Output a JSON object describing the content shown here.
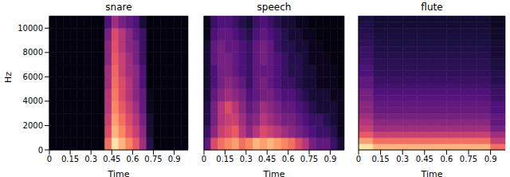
{
  "chart_data": [
    {
      "type": "heatmap",
      "title": "snare",
      "x_label": "Time",
      "y_label": "Hz",
      "xlim": [
        0,
        1
      ],
      "ylim": [
        0,
        11000
      ],
      "xticks": [
        0,
        0.15,
        0.3,
        0.45,
        0.6,
        0.75,
        0.9
      ],
      "yticks": [
        0,
        2000,
        4000,
        6000,
        8000,
        10000
      ],
      "tick_labels": true,
      "x_edges": [
        0,
        0.05,
        0.1,
        0.15,
        0.2,
        0.25,
        0.3,
        0.35,
        0.4,
        0.45,
        0.5,
        0.55,
        0.6,
        0.65,
        0.7,
        0.75,
        0.8,
        0.85,
        0.9,
        0.95,
        1
      ],
      "y_edges": [
        0,
        1000,
        2000,
        3000,
        4000,
        5000,
        6000,
        7000,
        8000,
        9000,
        10000,
        11000
      ],
      "cells": [
        [
          0.02,
          0.02,
          0.02,
          0.02,
          0.02,
          0.02,
          0.02,
          0.02,
          0.7,
          0.95,
          0.85,
          0.75,
          0.65,
          0.45,
          0.15,
          0.02,
          0.02,
          0.02,
          0.02,
          0.02
        ],
        [
          0.02,
          0.02,
          0.02,
          0.02,
          0.02,
          0.02,
          0.02,
          0.02,
          0.6,
          0.85,
          0.75,
          0.65,
          0.55,
          0.4,
          0.1,
          0.02,
          0.02,
          0.02,
          0.02,
          0.02
        ],
        [
          0.02,
          0.02,
          0.02,
          0.02,
          0.02,
          0.02,
          0.02,
          0.02,
          0.55,
          0.8,
          0.7,
          0.6,
          0.5,
          0.35,
          0.1,
          0.02,
          0.02,
          0.02,
          0.02,
          0.02
        ],
        [
          0.02,
          0.02,
          0.02,
          0.02,
          0.02,
          0.02,
          0.02,
          0.02,
          0.5,
          0.75,
          0.65,
          0.55,
          0.45,
          0.3,
          0.05,
          0.02,
          0.02,
          0.02,
          0.02,
          0.02
        ],
        [
          0.02,
          0.02,
          0.02,
          0.02,
          0.02,
          0.02,
          0.02,
          0.02,
          0.5,
          0.72,
          0.6,
          0.5,
          0.4,
          0.3,
          0.05,
          0.02,
          0.02,
          0.02,
          0.02,
          0.02
        ],
        [
          0.02,
          0.02,
          0.02,
          0.02,
          0.02,
          0.02,
          0.02,
          0.02,
          0.45,
          0.7,
          0.6,
          0.5,
          0.4,
          0.25,
          0.02,
          0.02,
          0.02,
          0.02,
          0.02,
          0.02
        ],
        [
          0.02,
          0.02,
          0.02,
          0.02,
          0.02,
          0.02,
          0.02,
          0.02,
          0.45,
          0.68,
          0.55,
          0.45,
          0.4,
          0.25,
          0.02,
          0.02,
          0.02,
          0.02,
          0.02,
          0.02
        ],
        [
          0.02,
          0.02,
          0.02,
          0.02,
          0.02,
          0.02,
          0.02,
          0.02,
          0.4,
          0.65,
          0.55,
          0.45,
          0.35,
          0.2,
          0.02,
          0.02,
          0.02,
          0.02,
          0.02,
          0.02
        ],
        [
          0.02,
          0.02,
          0.02,
          0.02,
          0.02,
          0.02,
          0.02,
          0.02,
          0.4,
          0.62,
          0.5,
          0.4,
          0.35,
          0.2,
          0.02,
          0.02,
          0.02,
          0.02,
          0.02,
          0.02
        ],
        [
          0.02,
          0.02,
          0.02,
          0.02,
          0.02,
          0.02,
          0.02,
          0.02,
          0.35,
          0.6,
          0.5,
          0.4,
          0.3,
          0.2,
          0.02,
          0.02,
          0.02,
          0.02,
          0.02,
          0.02
        ],
        [
          0.02,
          0.02,
          0.02,
          0.02,
          0.02,
          0.02,
          0.02,
          0.02,
          0.25,
          0.45,
          0.35,
          0.3,
          0.25,
          0.1,
          0.02,
          0.02,
          0.02,
          0.02,
          0.02,
          0.02
        ]
      ]
    },
    {
      "type": "heatmap",
      "title": "speech",
      "x_label": "Time",
      "xlim": [
        0,
        1
      ],
      "ylim": [
        0,
        11000
      ],
      "xticks": [
        0,
        0.15,
        0.3,
        0.45,
        0.6,
        0.75,
        0.9
      ],
      "yticks": [
        0,
        2000,
        4000,
        6000,
        8000,
        10000
      ],
      "tick_labels": "x",
      "x_edges": [
        0,
        0.05,
        0.1,
        0.15,
        0.2,
        0.25,
        0.3,
        0.35,
        0.4,
        0.45,
        0.5,
        0.55,
        0.6,
        0.65,
        0.7,
        0.75,
        0.8,
        0.85,
        0.9,
        0.95,
        1
      ],
      "y_edges": [
        0,
        1000,
        2000,
        3000,
        4000,
        5000,
        6000,
        7000,
        8000,
        9000,
        10000,
        11000
      ],
      "cells": [
        [
          0.3,
          0.6,
          0.7,
          0.75,
          0.8,
          0.7,
          0.75,
          0.85,
          0.8,
          0.85,
          0.8,
          0.75,
          0.7,
          0.6,
          0.5,
          0.35,
          0.3,
          0.3,
          0.2,
          0.1
        ],
        [
          0.2,
          0.4,
          0.55,
          0.6,
          0.65,
          0.5,
          0.4,
          0.5,
          0.6,
          0.55,
          0.5,
          0.45,
          0.4,
          0.35,
          0.3,
          0.25,
          0.2,
          0.2,
          0.15,
          0.05
        ],
        [
          0.15,
          0.35,
          0.5,
          0.55,
          0.55,
          0.45,
          0.35,
          0.4,
          0.5,
          0.45,
          0.4,
          0.35,
          0.35,
          0.3,
          0.25,
          0.2,
          0.2,
          0.15,
          0.1,
          0.05
        ],
        [
          0.15,
          0.35,
          0.5,
          0.6,
          0.5,
          0.4,
          0.3,
          0.35,
          0.45,
          0.4,
          0.35,
          0.3,
          0.3,
          0.25,
          0.2,
          0.15,
          0.1,
          0.1,
          0.1,
          0.05
        ],
        [
          0.1,
          0.3,
          0.4,
          0.45,
          0.4,
          0.35,
          0.25,
          0.3,
          0.35,
          0.35,
          0.3,
          0.25,
          0.25,
          0.2,
          0.15,
          0.1,
          0.1,
          0.1,
          0.05,
          0.05
        ],
        [
          0.1,
          0.25,
          0.35,
          0.4,
          0.35,
          0.3,
          0.2,
          0.3,
          0.35,
          0.3,
          0.25,
          0.2,
          0.2,
          0.15,
          0.1,
          0.1,
          0.05,
          0.05,
          0.05,
          0.02
        ],
        [
          0.1,
          0.25,
          0.35,
          0.35,
          0.3,
          0.25,
          0.2,
          0.3,
          0.3,
          0.3,
          0.25,
          0.2,
          0.15,
          0.15,
          0.1,
          0.1,
          0.05,
          0.05,
          0.05,
          0.02
        ],
        [
          0.1,
          0.3,
          0.35,
          0.35,
          0.3,
          0.25,
          0.2,
          0.3,
          0.35,
          0.3,
          0.25,
          0.2,
          0.15,
          0.15,
          0.1,
          0.05,
          0.05,
          0.05,
          0.02,
          0.02
        ],
        [
          0.1,
          0.3,
          0.35,
          0.3,
          0.3,
          0.25,
          0.2,
          0.3,
          0.35,
          0.3,
          0.2,
          0.15,
          0.15,
          0.1,
          0.1,
          0.05,
          0.05,
          0.02,
          0.02,
          0.02
        ],
        [
          0.05,
          0.25,
          0.3,
          0.3,
          0.25,
          0.2,
          0.15,
          0.25,
          0.3,
          0.25,
          0.2,
          0.15,
          0.1,
          0.1,
          0.05,
          0.05,
          0.02,
          0.02,
          0.02,
          0.02
        ],
        [
          0.05,
          0.2,
          0.25,
          0.25,
          0.2,
          0.15,
          0.1,
          0.2,
          0.25,
          0.2,
          0.15,
          0.1,
          0.1,
          0.05,
          0.05,
          0.02,
          0.02,
          0.02,
          0.02,
          0.02
        ]
      ]
    },
    {
      "type": "heatmap",
      "title": "flute",
      "x_label": "Time",
      "xlim": [
        0,
        1
      ],
      "ylim": [
        0,
        11000
      ],
      "xticks": [
        0,
        0.15,
        0.3,
        0.45,
        0.6,
        0.75,
        0.9
      ],
      "yticks": [
        0,
        2000,
        4000,
        6000,
        8000,
        10000
      ],
      "tick_labels": "x",
      "x_edges": [
        0,
        0.1,
        0.2,
        0.3,
        0.4,
        0.5,
        0.6,
        0.7,
        0.8,
        0.9,
        1
      ],
      "y_edges": [
        0,
        500,
        1000,
        1500,
        2000,
        2500,
        3000,
        3500,
        4000,
        4500,
        5000,
        5500,
        6000,
        6500,
        7000,
        7500,
        8000,
        8500,
        9000,
        9500,
        10000,
        10500,
        11000
      ],
      "cells": [
        [
          0.95,
          0.85,
          0.85,
          0.85,
          0.85,
          0.85,
          0.85,
          0.85,
          0.85,
          0.7
        ],
        [
          0.8,
          0.7,
          0.7,
          0.7,
          0.7,
          0.7,
          0.7,
          0.7,
          0.7,
          0.55
        ],
        [
          0.65,
          0.55,
          0.55,
          0.55,
          0.55,
          0.55,
          0.55,
          0.55,
          0.55,
          0.45
        ],
        [
          0.55,
          0.45,
          0.45,
          0.45,
          0.45,
          0.45,
          0.45,
          0.45,
          0.45,
          0.35
        ],
        [
          0.5,
          0.4,
          0.4,
          0.4,
          0.4,
          0.4,
          0.4,
          0.4,
          0.4,
          0.3
        ],
        [
          0.45,
          0.35,
          0.35,
          0.35,
          0.35,
          0.35,
          0.35,
          0.35,
          0.35,
          0.3
        ],
        [
          0.4,
          0.32,
          0.32,
          0.32,
          0.32,
          0.32,
          0.32,
          0.32,
          0.32,
          0.25
        ],
        [
          0.4,
          0.3,
          0.3,
          0.3,
          0.3,
          0.3,
          0.3,
          0.3,
          0.3,
          0.25
        ],
        [
          0.35,
          0.27,
          0.27,
          0.27,
          0.27,
          0.27,
          0.27,
          0.27,
          0.27,
          0.2
        ],
        [
          0.35,
          0.25,
          0.25,
          0.25,
          0.25,
          0.25,
          0.25,
          0.25,
          0.25,
          0.2
        ],
        [
          0.3,
          0.22,
          0.22,
          0.22,
          0.22,
          0.22,
          0.22,
          0.22,
          0.22,
          0.18
        ],
        [
          0.3,
          0.2,
          0.2,
          0.2,
          0.2,
          0.2,
          0.2,
          0.2,
          0.2,
          0.15
        ],
        [
          0.25,
          0.18,
          0.18,
          0.18,
          0.18,
          0.18,
          0.18,
          0.18,
          0.18,
          0.15
        ],
        [
          0.25,
          0.17,
          0.17,
          0.17,
          0.17,
          0.17,
          0.17,
          0.17,
          0.17,
          0.12
        ],
        [
          0.22,
          0.16,
          0.16,
          0.16,
          0.16,
          0.16,
          0.16,
          0.16,
          0.16,
          0.12
        ],
        [
          0.2,
          0.15,
          0.15,
          0.15,
          0.15,
          0.15,
          0.15,
          0.15,
          0.15,
          0.1
        ],
        [
          0.2,
          0.14,
          0.14,
          0.14,
          0.14,
          0.14,
          0.14,
          0.14,
          0.14,
          0.1
        ],
        [
          0.18,
          0.13,
          0.13,
          0.13,
          0.13,
          0.13,
          0.13,
          0.13,
          0.13,
          0.1
        ],
        [
          0.16,
          0.12,
          0.12,
          0.12,
          0.12,
          0.12,
          0.12,
          0.12,
          0.12,
          0.08
        ],
        [
          0.15,
          0.11,
          0.11,
          0.11,
          0.11,
          0.11,
          0.11,
          0.11,
          0.11,
          0.08
        ],
        [
          0.14,
          0.1,
          0.1,
          0.1,
          0.1,
          0.1,
          0.1,
          0.1,
          0.1,
          0.07
        ],
        [
          0.12,
          0.09,
          0.09,
          0.09,
          0.09,
          0.09,
          0.09,
          0.09,
          0.09,
          0.06
        ]
      ]
    }
  ]
}
